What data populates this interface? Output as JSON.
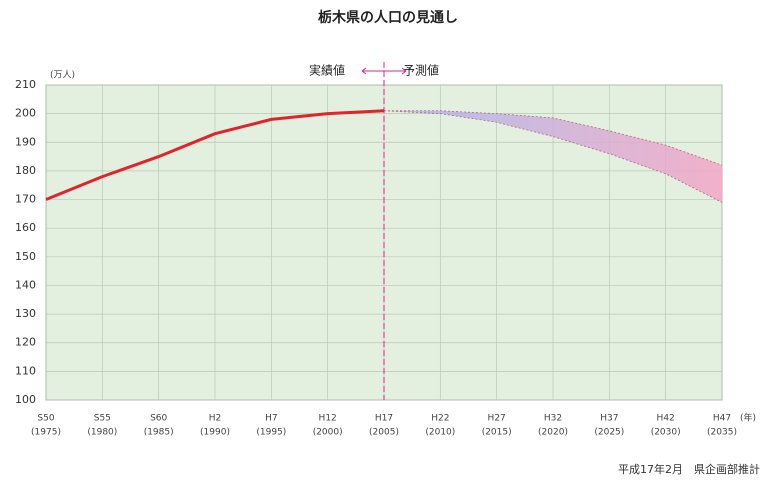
{
  "chart_data": {
    "type": "line",
    "title": "栃木県の人口の見通し",
    "y_unit": "(万人)",
    "x_unit": "(年)",
    "categories": [
      "S50",
      "S55",
      "S60",
      "H2",
      "H7",
      "H12",
      "H17",
      "H22",
      "H27",
      "H32",
      "H37",
      "H42",
      "H47"
    ],
    "category_years": [
      "(1975)",
      "(1980)",
      "(1985)",
      "(1990)",
      "(1995)",
      "(2000)",
      "(2005)",
      "(2010)",
      "(2015)",
      "(2020)",
      "(2025)",
      "(2030)",
      "(2035)"
    ],
    "series": [
      {
        "color": "#e3232c",
        "values": [
          170,
          178,
          185,
          193,
          198,
          200,
          201,
          null,
          null,
          null,
          null,
          null,
          null
        ]
      }
    ],
    "band": {
      "upper": [
        null,
        null,
        null,
        null,
        null,
        null,
        201,
        201,
        200,
        198.5,
        194,
        189,
        182
      ],
      "lower": [
        null,
        null,
        null,
        null,
        null,
        null,
        201,
        200,
        197,
        192,
        186,
        179,
        169
      ],
      "colors": [
        "#a8b8f0",
        "#f4a6c6"
      ]
    },
    "annotations": [
      "実績値",
      "予測値"
    ],
    "annotation_color": "#e0208a",
    "source": "平成17年2月　県企画部推計",
    "ylim": [
      100,
      210
    ],
    "yticks": [
      100,
      110,
      120,
      130,
      140,
      150,
      160,
      170,
      180,
      190,
      200,
      210
    ],
    "background": "#e3f0df",
    "grid": true
  }
}
